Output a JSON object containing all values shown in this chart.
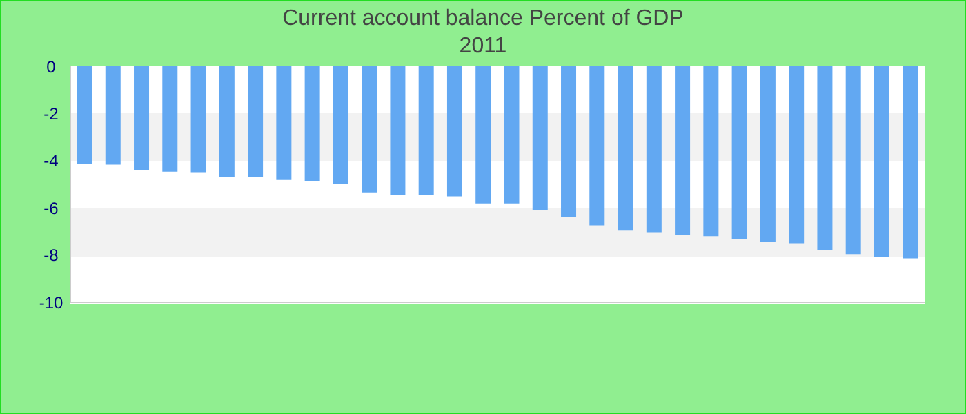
{
  "chart_data": {
    "type": "bar",
    "title": "Current account balance  Percent of GDP",
    "subtitle": "2011",
    "categories": [
      null,
      null,
      null,
      null,
      null,
      null,
      null,
      null,
      null,
      null,
      null,
      null,
      null,
      null,
      null,
      null,
      null,
      null,
      null,
      null,
      null,
      null,
      null,
      null,
      null,
      null,
      null,
      null,
      null,
      null
    ],
    "values": [
      -4.12,
      -4.17,
      -4.41,
      -4.47,
      -4.52,
      -4.7,
      -4.7,
      -4.82,
      -4.87,
      -4.99,
      -5.34,
      -5.46,
      -5.46,
      -5.51,
      -5.81,
      -5.81,
      -6.1,
      -6.39,
      -6.74,
      -6.97,
      -7.03,
      -7.15,
      -7.2,
      -7.32,
      -7.44,
      -7.5,
      -7.79,
      -7.96,
      -8.08,
      -8.14
    ],
    "color": "#62a8f2",
    "ylim": [
      -10,
      0
    ],
    "yticks": [
      0,
      -2,
      -4,
      -6,
      -8,
      -10
    ],
    "bands": [
      {
        "axis": "y",
        "from": -2,
        "to": -4,
        "color": "#f2f2f2"
      },
      {
        "axis": "y",
        "from": -6,
        "to": -8,
        "color": "#f2f2f2"
      }
    ],
    "tick_labels": "y"
  }
}
